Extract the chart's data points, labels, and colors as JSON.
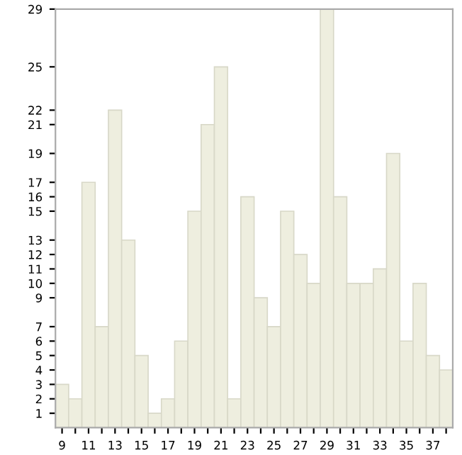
{
  "chart_data": {
    "type": "bar",
    "categories": [
      "9",
      null,
      "11",
      null,
      "13",
      null,
      "15",
      null,
      "17",
      null,
      "19",
      null,
      "21",
      null,
      "23",
      null,
      "25",
      null,
      "27",
      null,
      "29",
      null,
      "31",
      null,
      "33",
      null,
      "35",
      null,
      "37",
      null
    ],
    "values": [
      3,
      2,
      17,
      7,
      22,
      13,
      5,
      1,
      2,
      6,
      15,
      21,
      25,
      2,
      16,
      9,
      7,
      15,
      12,
      10,
      29,
      16,
      10,
      10,
      11,
      19,
      6,
      10,
      5,
      4
    ],
    "color": "#eeeedf",
    "ylim": [
      0,
      29
    ],
    "yticks": [
      1,
      2,
      3,
      4,
      5,
      6,
      7,
      9,
      10,
      11,
      12,
      13,
      15,
      16,
      17,
      19,
      21,
      22,
      25,
      29
    ],
    "grid": false
  }
}
